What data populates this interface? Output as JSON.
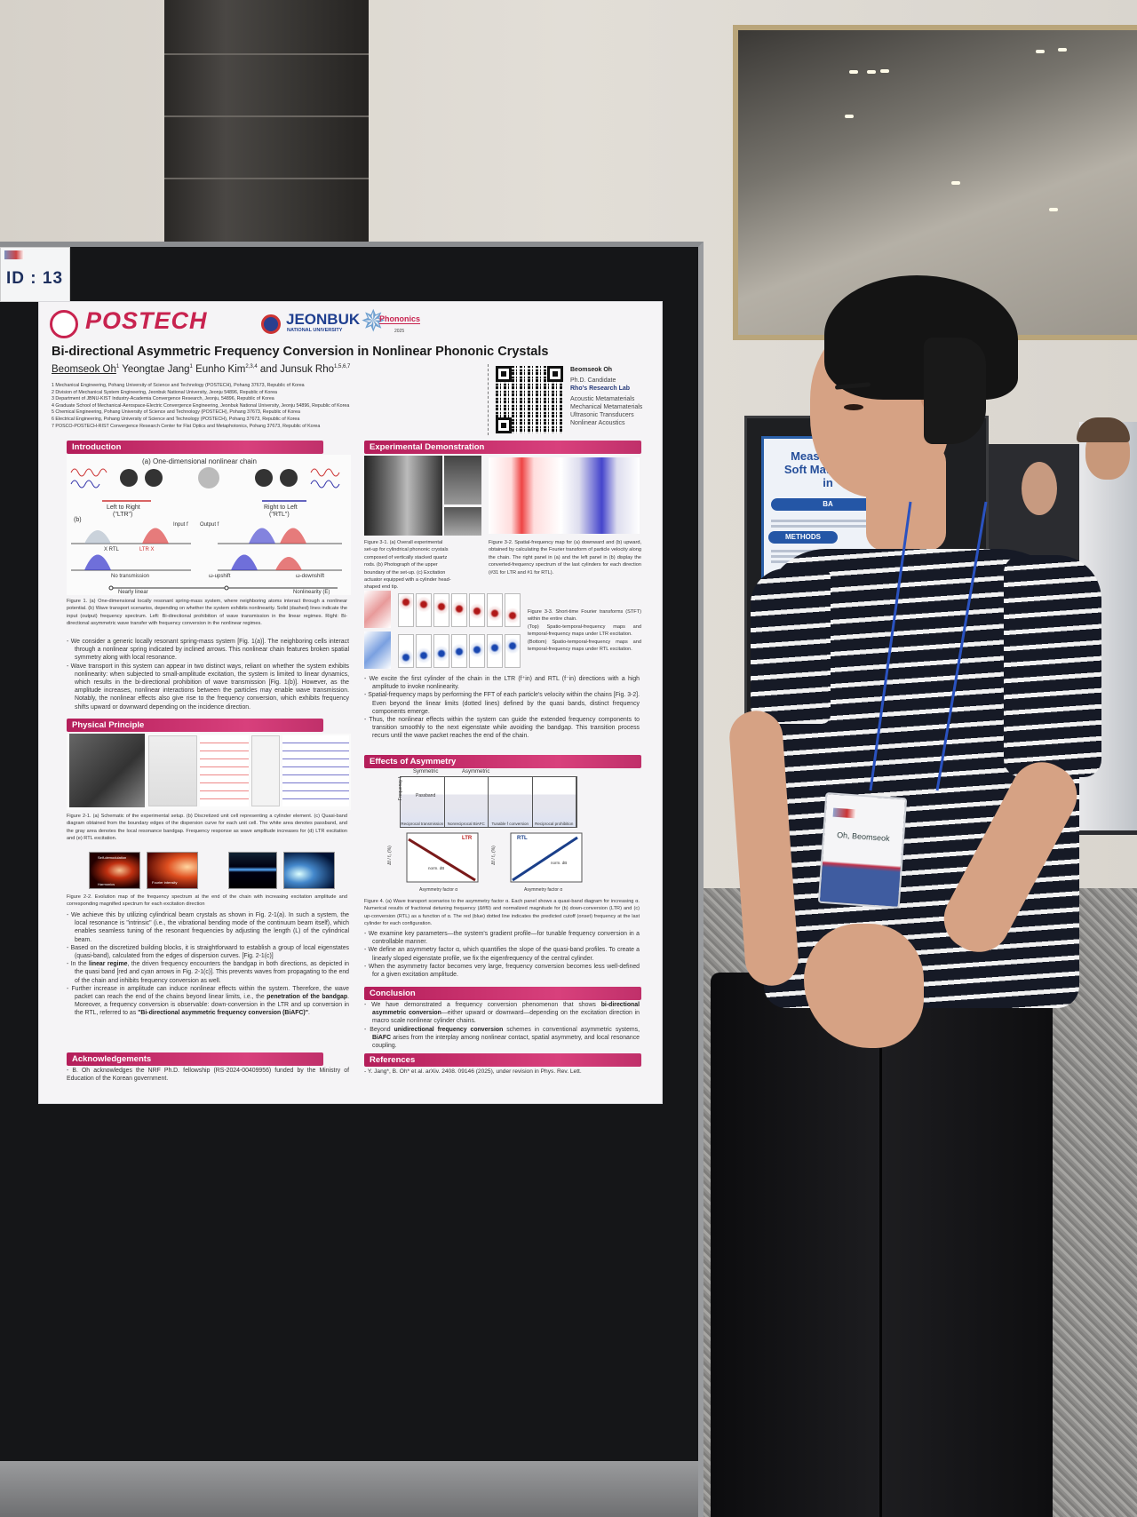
{
  "id_label": "ID : 13",
  "background_poster": {
    "title_lines": [
      "Measurement",
      "Soft Materials U",
      "in"
    ],
    "section_1": "BA",
    "section_2": "METHODS"
  },
  "badge": {
    "name": "Oh, Beomseok"
  },
  "poster": {
    "logos": {
      "postech": "POSTECH",
      "jeonbuk": "JEONBUK",
      "jeonbuk_sub": "NATIONAL UNIVERSITY",
      "phononics": "Phononics",
      "phononics_year": "2025"
    },
    "title": "Bi-directional Asymmetric Frequency Conversion in Nonlinear Phononic Crystals",
    "authors": [
      {
        "name": "Beomseok Oh",
        "sup": "1"
      },
      {
        "name": "Yeongtae Jang",
        "sup": "1"
      },
      {
        "name": "Eunho Kim",
        "sup": "2,3,4"
      },
      {
        "name": "and Junsuk Rho",
        "sup": "1,5,6,7"
      }
    ],
    "affiliations": [
      "1 Mechanical Engineering, Pohang University of Science and Technology (POSTECH), Pohang 37673, Republic of Korea",
      "2 Division of Mechanical System Engineering, Jeonbuk National University, Jeonju 54896, Republic of Korea",
      "3 Department of JBNU-KIST Industry-Academia Convergence Research, Jeonju, 54896, Republic of Korea",
      "4 Graduate School of Mechanical-Aerospace-Electric Convergence Engineering, Jeonbuk National University, Jeonju 54896, Republic of Korea",
      "5 Chemical Engineering, Pohang University of Science and Technology (POSTECH), Pohang 37673, Republic of Korea",
      "6 Electrical Engineering, Pohang University of Science and Technology (POSTECH), Pohang 37673, Republic of Korea",
      "7 POSCO-POSTECH-RIST Convergence Research Center for Flat Optics and Metaphotonics, Pohang 37673, Republic of Korea"
    ],
    "contact": {
      "name": "Beomseok Oh",
      "position": "Ph.D. Candidate",
      "lab": "Rho's Research Lab",
      "topics": [
        "Acoustic Metamaterials",
        "Mechanical Metamaterials",
        "Ultrasonic Transducers",
        "Nonlinear Acoustics"
      ]
    },
    "introduction": {
      "header": "Introduction",
      "fig_labels": {
        "a": "(a) One-dimensional nonlinear chain",
        "ltr": "Left to Right",
        "ltr_abbr": "(\"LTR\")",
        "rtl": "Right to Left",
        "rtl_abbr": "(\"RTL\")",
        "b": "(b)",
        "input": "Input f",
        "output": "Output f",
        "x_rtl": "X RTL",
        "ltr_x": "LTR X",
        "no_trans": "No transmission",
        "upshift": "ω-upshift",
        "downshift": "ω-downshift",
        "nearly_linear": "Nearly linear",
        "nonlinearity": "Nonlinearity (E)"
      },
      "caption": "Figure 1. (a) One-dimensional locally resonant spring-mass system, where neighboring atoms interact through a nonlinear potential. (b) Wave transport scenarios, depending on whether the system exhibits nonlinearity. Solid (dashed) lines indicate the input (output) frequency spectrum. Left: Bi-directional prohibition of wave transmission in the linear regimes. Right: Bi-directional asymmetric wave transfer with frequency conversion in the nonlinear regimes.",
      "bullets": [
        "We consider a generic locally resonant spring-mass system [Fig. 1(a)]. The neighboring cells interact through a nonlinear spring indicated by inclined arrows. This nonlinear chain features broken spatial symmetry along with local resonance.",
        "Wave transport in this system can appear in two distinct ways, reliant on whether the system exhibits nonlinearity: when subjected to small-amplitude excitation, the system is limited to linear dynamics, which results in the bi-directional prohibition of wave transmission [Fig. 1(b)]. However, as the amplitude increases, nonlinear interactions between the particles may enable wave transmission. Notably, the nonlinear effects also give rise to the frequency conversion, which exhibits frequency shifts upward or downward depending on the incidence direction."
      ]
    },
    "physical_principle": {
      "header": "Physical Principle",
      "caption_1": "Figure 2-1. (a) Schematic of the experimental setup. (b) Discretized unit cell representing a cylinder element. (c) Quasi-band diagram obtained from the boundary edges of the dispersion curve for each unit cell. The white area denotes passband, and the gray area denotes the local resonance bandgap. Frequency response as wave amplitude increases for (d) LTR excitation and (e) RTL excitation.",
      "map_labels": {
        "self": "Self-demodulation",
        "harmonics": "Harmonics",
        "fourier": "Fourier intensity"
      },
      "caption_2": "Figure 2-2. Evolution map of the frequency spectrum at the end of the chain with increasing excitation amplitude and corresponding magnified spectrum for each excitation direction",
      "bullets": [
        [
          "We achieve this by utilizing cylindrical beam crystals as shown in Fig. 2-1(a). In such a system, the local resonance is \"intrinsic\" (i.e., the vibrational bending mode of the continuum beam itself), which enables seamless tuning of the resonant frequencies by adjusting the length (L) of the cylindrical beam."
        ],
        [
          "Based on the discretized building blocks, it is straightforward to establish a group of local eigenstates (quasi-band), calculated from the edges of dispersion curves. [Fig. 2-1(c)]"
        ],
        [
          "In the ",
          "linear regime",
          ", the driven frequency encounters the bandgap in both directions, as depicted in the quasi band [red and cyan arrows in Fig. 2-1(c)]. This prevents waves from propagating to the end of the chain and inhibits frequency conversion as well."
        ],
        [
          "Further increase in amplitude can induce nonlinear effects within the system. Therefore, the wave packet can reach the end of the chains beyond linear limits, i.e., the ",
          "penetration of the bandgap",
          ". Moreover, a frequency conversion is observable: down-conversion in the LTR and up conversion in the RTL, referred to as ",
          "\"Bi-directional asymmetric frequency conversion (BiAFC)\"",
          "."
        ]
      ]
    },
    "acknowledgements": {
      "header": "Acknowledgements",
      "text": "- B. Oh acknowledges the NRF Ph.D. fellowship (RS-2024-00409956) funded by the Ministry of Education of the Korean government."
    },
    "experimental": {
      "header": "Experimental Demonstration",
      "caption_31": "Figure 3-1. (a) Overall experimental set-up for cylindrical phononic crystals composed of vertically stacked quartz rods. (b) Photograph of the upper boundary of the set-up. (c) Excitation actuator equipped with a cylinder head-shaped end tip.",
      "caption_32": "Figure 3-2. Spatial-frequency map for (a) downward and (b) upward, obtained by calculating the Fourier transform of particle velocity along the chain. The right panel in (a) and the left panel in (b) display the converted-frequency spectrum of the last cylinders for each direction (#31 for LTR and #1 for RTL).",
      "caption_33": [
        "Figure 3-3. Short-time Fourier transforms (STFT) within the entire chain.",
        "(Top) Spatio-temporal-frequency maps and temporal-frequency maps under LTR excitation.",
        "(Bottom) Spatio-temporal-frequency maps and temporal-frequency maps under RTL excitation."
      ],
      "bullets": [
        "We excite the first cylinder of the chain in the LTR (f⁺in) and RTL (f⁻in) directions with a high amplitude to invoke nonlinearity.",
        "Spatial-frequency maps by performing the FFT of each particle's velocity within the chains [Fig. 3-2]. Even beyond the linear limits (dotted lines) defined by the quasi bands, distinct frequency components emerge.",
        "Thus, the nonlinear effects within the system can guide the extended frequency components to transition smoothly to the next eigenstate while avoiding the bandgap. This transition process recurs until the wave packet reaches the end of the chain."
      ]
    },
    "asymmetry": {
      "header": "Effects of Asymmetry",
      "fig_labels": {
        "symmetric": "Symmetric",
        "asymmetric": "Asymmetric",
        "passband": "Passband",
        "panels": [
          "Reciprocal transmission",
          "Nonreciprocal BiAFC",
          "Tunable f conversion",
          "Reciprocal prohibition"
        ],
        "ltr": "LTR",
        "rtl": "RTL",
        "xlabel": "Asymmetry factor α",
        "ylabel": "Δf / f₀ (%)",
        "norm": "norm. dB",
        "yaxis": "Frequency f"
      },
      "caption": "Figure 4. (a) Wave transport scenarios to the asymmetry factor α. Each panel shows a quasi-band diagram for increasing α. Numerical results of fractional detuning frequency (Δf/f0) and normalized magnitude for (b) down-conversion (LTR) and (c) up-conversion (RTL) as a function of α. The red (blue) dotted line indicates the predicted cutoff (onset) frequency at the last cylinder for each configuration.",
      "bullets": [
        "We examine key parameters—the system's gradient profile—for tunable frequency conversion in a controllable manner.",
        "We define an asymmetry factor α, which quantifies the slope of the quasi-band profiles. To create a linearly sloped eigenstate profile, we fix the eigenfrequency of the central cylinder.",
        "When the asymmetry factor becomes very large, frequency conversion becomes less well-defined for a given excitation amplitude."
      ]
    },
    "conclusion": {
      "header": "Conclusion",
      "bullets": [
        [
          "We have demonstrated a frequency conversion phenomenon that shows ",
          "bi-directional asymmetric conversion",
          "—either upward or downward—depending on the excitation direction in macro scale nonlinear cylinder chains."
        ],
        [
          "Beyond ",
          "unidirectional frequency conversion",
          " schemes in conventional asymmetric systems, ",
          "BiAFC",
          " arises from the interplay among nonlinear contact, spatial asymmetry, and local resonance coupling."
        ]
      ]
    },
    "references": {
      "header": "References",
      "text": "- Y. Jang*, B. Oh* et al. arXiv. 2408. 09146 (2025), under revision in Phys. Rev. Lett."
    }
  },
  "colors": {
    "section_header": "#c8306c",
    "postech": "#c8234f",
    "jeonbuk": "#1f3f8f",
    "shirt": "#161a26",
    "board": "#151618"
  }
}
